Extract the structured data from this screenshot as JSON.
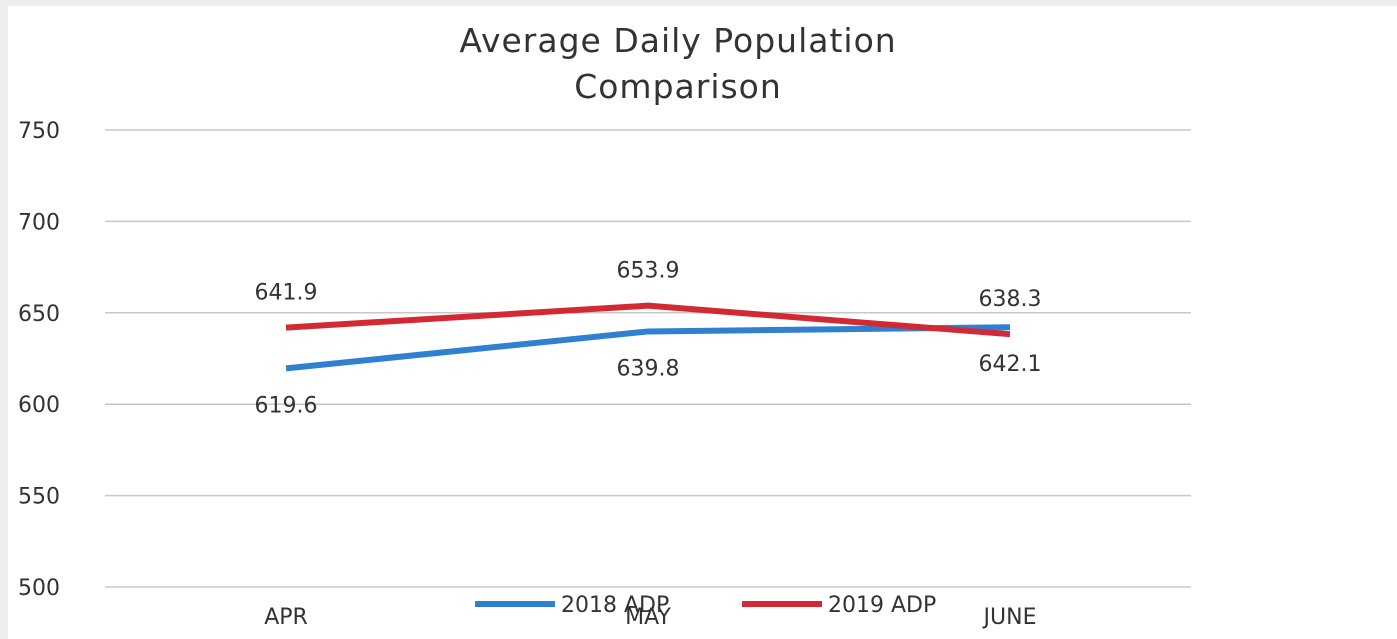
{
  "chart_data": {
    "type": "line",
    "title": "Average Daily Population Comparison",
    "categories": [
      "APR",
      "MAY",
      "JUNE"
    ],
    "series": [
      {
        "name": "2018 ADP",
        "color": "#2f80d0",
        "values": [
          619.6,
          639.8,
          642.1
        ],
        "value_labels": [
          "619.6",
          "639.8",
          "642.1"
        ]
      },
      {
        "name": "2019 ADP",
        "color": "#d22a35",
        "values": [
          641.9,
          653.9,
          638.3
        ],
        "value_labels": [
          "641.9",
          "653.9",
          "638.3"
        ]
      }
    ],
    "ylim": [
      500,
      750
    ],
    "yticks": [
      500,
      550,
      600,
      650,
      700,
      750
    ],
    "grid": true,
    "legend": "bottom"
  }
}
